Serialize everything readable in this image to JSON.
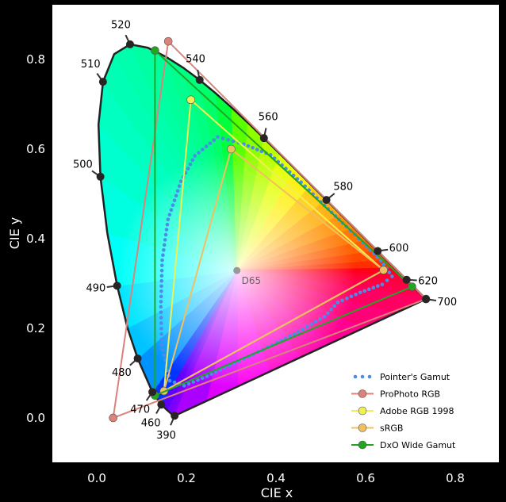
{
  "chart_data": {
    "type": "scatter",
    "xlabel": "CIE x",
    "ylabel": "CIE y",
    "xlim": [
      -0.1,
      0.9
    ],
    "ylim": [
      -0.1,
      0.9
    ],
    "x_ticks": [
      "0.0",
      "0.2",
      "0.4",
      "0.6",
      "0.8"
    ],
    "y_ticks": [
      "0.0",
      "0.2",
      "0.4",
      "0.6",
      "0.8"
    ],
    "x_tick_values": [
      0,
      0.2,
      0.4,
      0.6,
      0.8
    ],
    "y_tick_values": [
      0,
      0.2,
      0.4,
      0.6,
      0.8
    ],
    "grid": false,
    "legend_position": "bottom-right",
    "spectral_locus": [
      [
        0.1741,
        0.005
      ],
      [
        0.1733,
        0.0048
      ],
      [
        0.1726,
        0.0048
      ],
      [
        0.1714,
        0.0051
      ],
      [
        0.1689,
        0.0069
      ],
      [
        0.1644,
        0.0109
      ],
      [
        0.1566,
        0.0177
      ],
      [
        0.144,
        0.0297
      ],
      [
        0.1241,
        0.0578
      ],
      [
        0.0913,
        0.1327
      ],
      [
        0.0687,
        0.2007
      ],
      [
        0.0454,
        0.295
      ],
      [
        0.0235,
        0.4127
      ],
      [
        0.0082,
        0.5384
      ],
      [
        0.0039,
        0.6548
      ],
      [
        0.0139,
        0.7502
      ],
      [
        0.0389,
        0.812
      ],
      [
        0.0743,
        0.8338
      ],
      [
        0.1142,
        0.8262
      ],
      [
        0.1547,
        0.8059
      ],
      [
        0.1929,
        0.7816
      ],
      [
        0.2296,
        0.7543
      ],
      [
        0.2658,
        0.7243
      ],
      [
        0.3016,
        0.6923
      ],
      [
        0.3373,
        0.6589
      ],
      [
        0.3731,
        0.6245
      ],
      [
        0.4087,
        0.5896
      ],
      [
        0.4441,
        0.5547
      ],
      [
        0.4788,
        0.5202
      ],
      [
        0.5125,
        0.4866
      ],
      [
        0.5448,
        0.4544
      ],
      [
        0.5752,
        0.4242
      ],
      [
        0.6029,
        0.3965
      ],
      [
        0.627,
        0.3725
      ],
      [
        0.6482,
        0.3514
      ],
      [
        0.6658,
        0.334
      ],
      [
        0.6801,
        0.3197
      ],
      [
        0.6915,
        0.3083
      ],
      [
        0.7006,
        0.2993
      ],
      [
        0.7079,
        0.292
      ],
      [
        0.714,
        0.2859
      ],
      [
        0.719,
        0.2809
      ],
      [
        0.723,
        0.277
      ],
      [
        0.726,
        0.274
      ],
      [
        0.7283,
        0.2717
      ],
      [
        0.73,
        0.27
      ],
      [
        0.7347,
        0.2653
      ]
    ],
    "wavelength_markers": [
      {
        "label": "390",
        "x": 0.1738,
        "y": 0.0049
      },
      {
        "label": "460",
        "x": 0.144,
        "y": 0.0297
      },
      {
        "label": "470",
        "x": 0.1241,
        "y": 0.0578
      },
      {
        "label": "480",
        "x": 0.0913,
        "y": 0.1327
      },
      {
        "label": "490",
        "x": 0.0454,
        "y": 0.295
      },
      {
        "label": "500",
        "x": 0.0082,
        "y": 0.5384
      },
      {
        "label": "510",
        "x": 0.0139,
        "y": 0.7502
      },
      {
        "label": "520",
        "x": 0.0743,
        "y": 0.8338
      },
      {
        "label": "540",
        "x": 0.2296,
        "y": 0.7543
      },
      {
        "label": "560",
        "x": 0.3731,
        "y": 0.6245
      },
      {
        "label": "580",
        "x": 0.5125,
        "y": 0.4866
      },
      {
        "label": "600",
        "x": 0.627,
        "y": 0.3725
      },
      {
        "label": "620",
        "x": 0.6915,
        "y": 0.3083
      },
      {
        "label": "700",
        "x": 0.7347,
        "y": 0.2653
      }
    ],
    "series": [
      {
        "name": "Pointer's Gamut",
        "style": "dots",
        "color": "#4a8de8",
        "points": [
          [
            0.508,
            0.226
          ],
          [
            0.538,
            0.258
          ],
          [
            0.588,
            0.28
          ],
          [
            0.637,
            0.298
          ],
          [
            0.659,
            0.316
          ],
          [
            0.634,
            0.351
          ],
          [
            0.594,
            0.391
          ],
          [
            0.557,
            0.427
          ],
          [
            0.5,
            0.482
          ],
          [
            0.456,
            0.526
          ],
          [
            0.388,
            0.587
          ],
          [
            0.328,
            0.611
          ],
          [
            0.27,
            0.627
          ],
          [
            0.219,
            0.585
          ],
          [
            0.188,
            0.528
          ],
          [
            0.159,
            0.443
          ],
          [
            0.146,
            0.352
          ],
          [
            0.143,
            0.248
          ],
          [
            0.145,
            0.163
          ],
          [
            0.163,
            0.083
          ],
          [
            0.195,
            0.072
          ],
          [
            0.246,
            0.093
          ],
          [
            0.296,
            0.117
          ],
          [
            0.349,
            0.142
          ],
          [
            0.402,
            0.168
          ],
          [
            0.45,
            0.192
          ],
          [
            0.508,
            0.226
          ]
        ]
      },
      {
        "name": "ProPhoto RGB",
        "style": "polygon",
        "color": "#d9837a",
        "points": [
          [
            0.7347,
            0.2653
          ],
          [
            0.1596,
            0.8404
          ],
          [
            0.0366,
            0.0001
          ]
        ]
      },
      {
        "name": "Adobe RGB 1998",
        "style": "polygon",
        "color": "#f0f054",
        "points": [
          [
            0.64,
            0.33
          ],
          [
            0.21,
            0.71
          ],
          [
            0.15,
            0.06
          ]
        ]
      },
      {
        "name": "sRGB",
        "style": "polygon",
        "color": "#f0c060",
        "points": [
          [
            0.64,
            0.33
          ],
          [
            0.3,
            0.6
          ],
          [
            0.15,
            0.06
          ]
        ]
      },
      {
        "name": "DxO Wide Gamut",
        "style": "polygon",
        "color": "#22a622",
        "points": [
          [
            0.7036,
            0.2929
          ],
          [
            0.13,
            0.82
          ],
          [
            0.13,
            0.05
          ]
        ]
      }
    ],
    "white_point": {
      "label": "D65",
      "x": 0.3127,
      "y": 0.329
    }
  }
}
